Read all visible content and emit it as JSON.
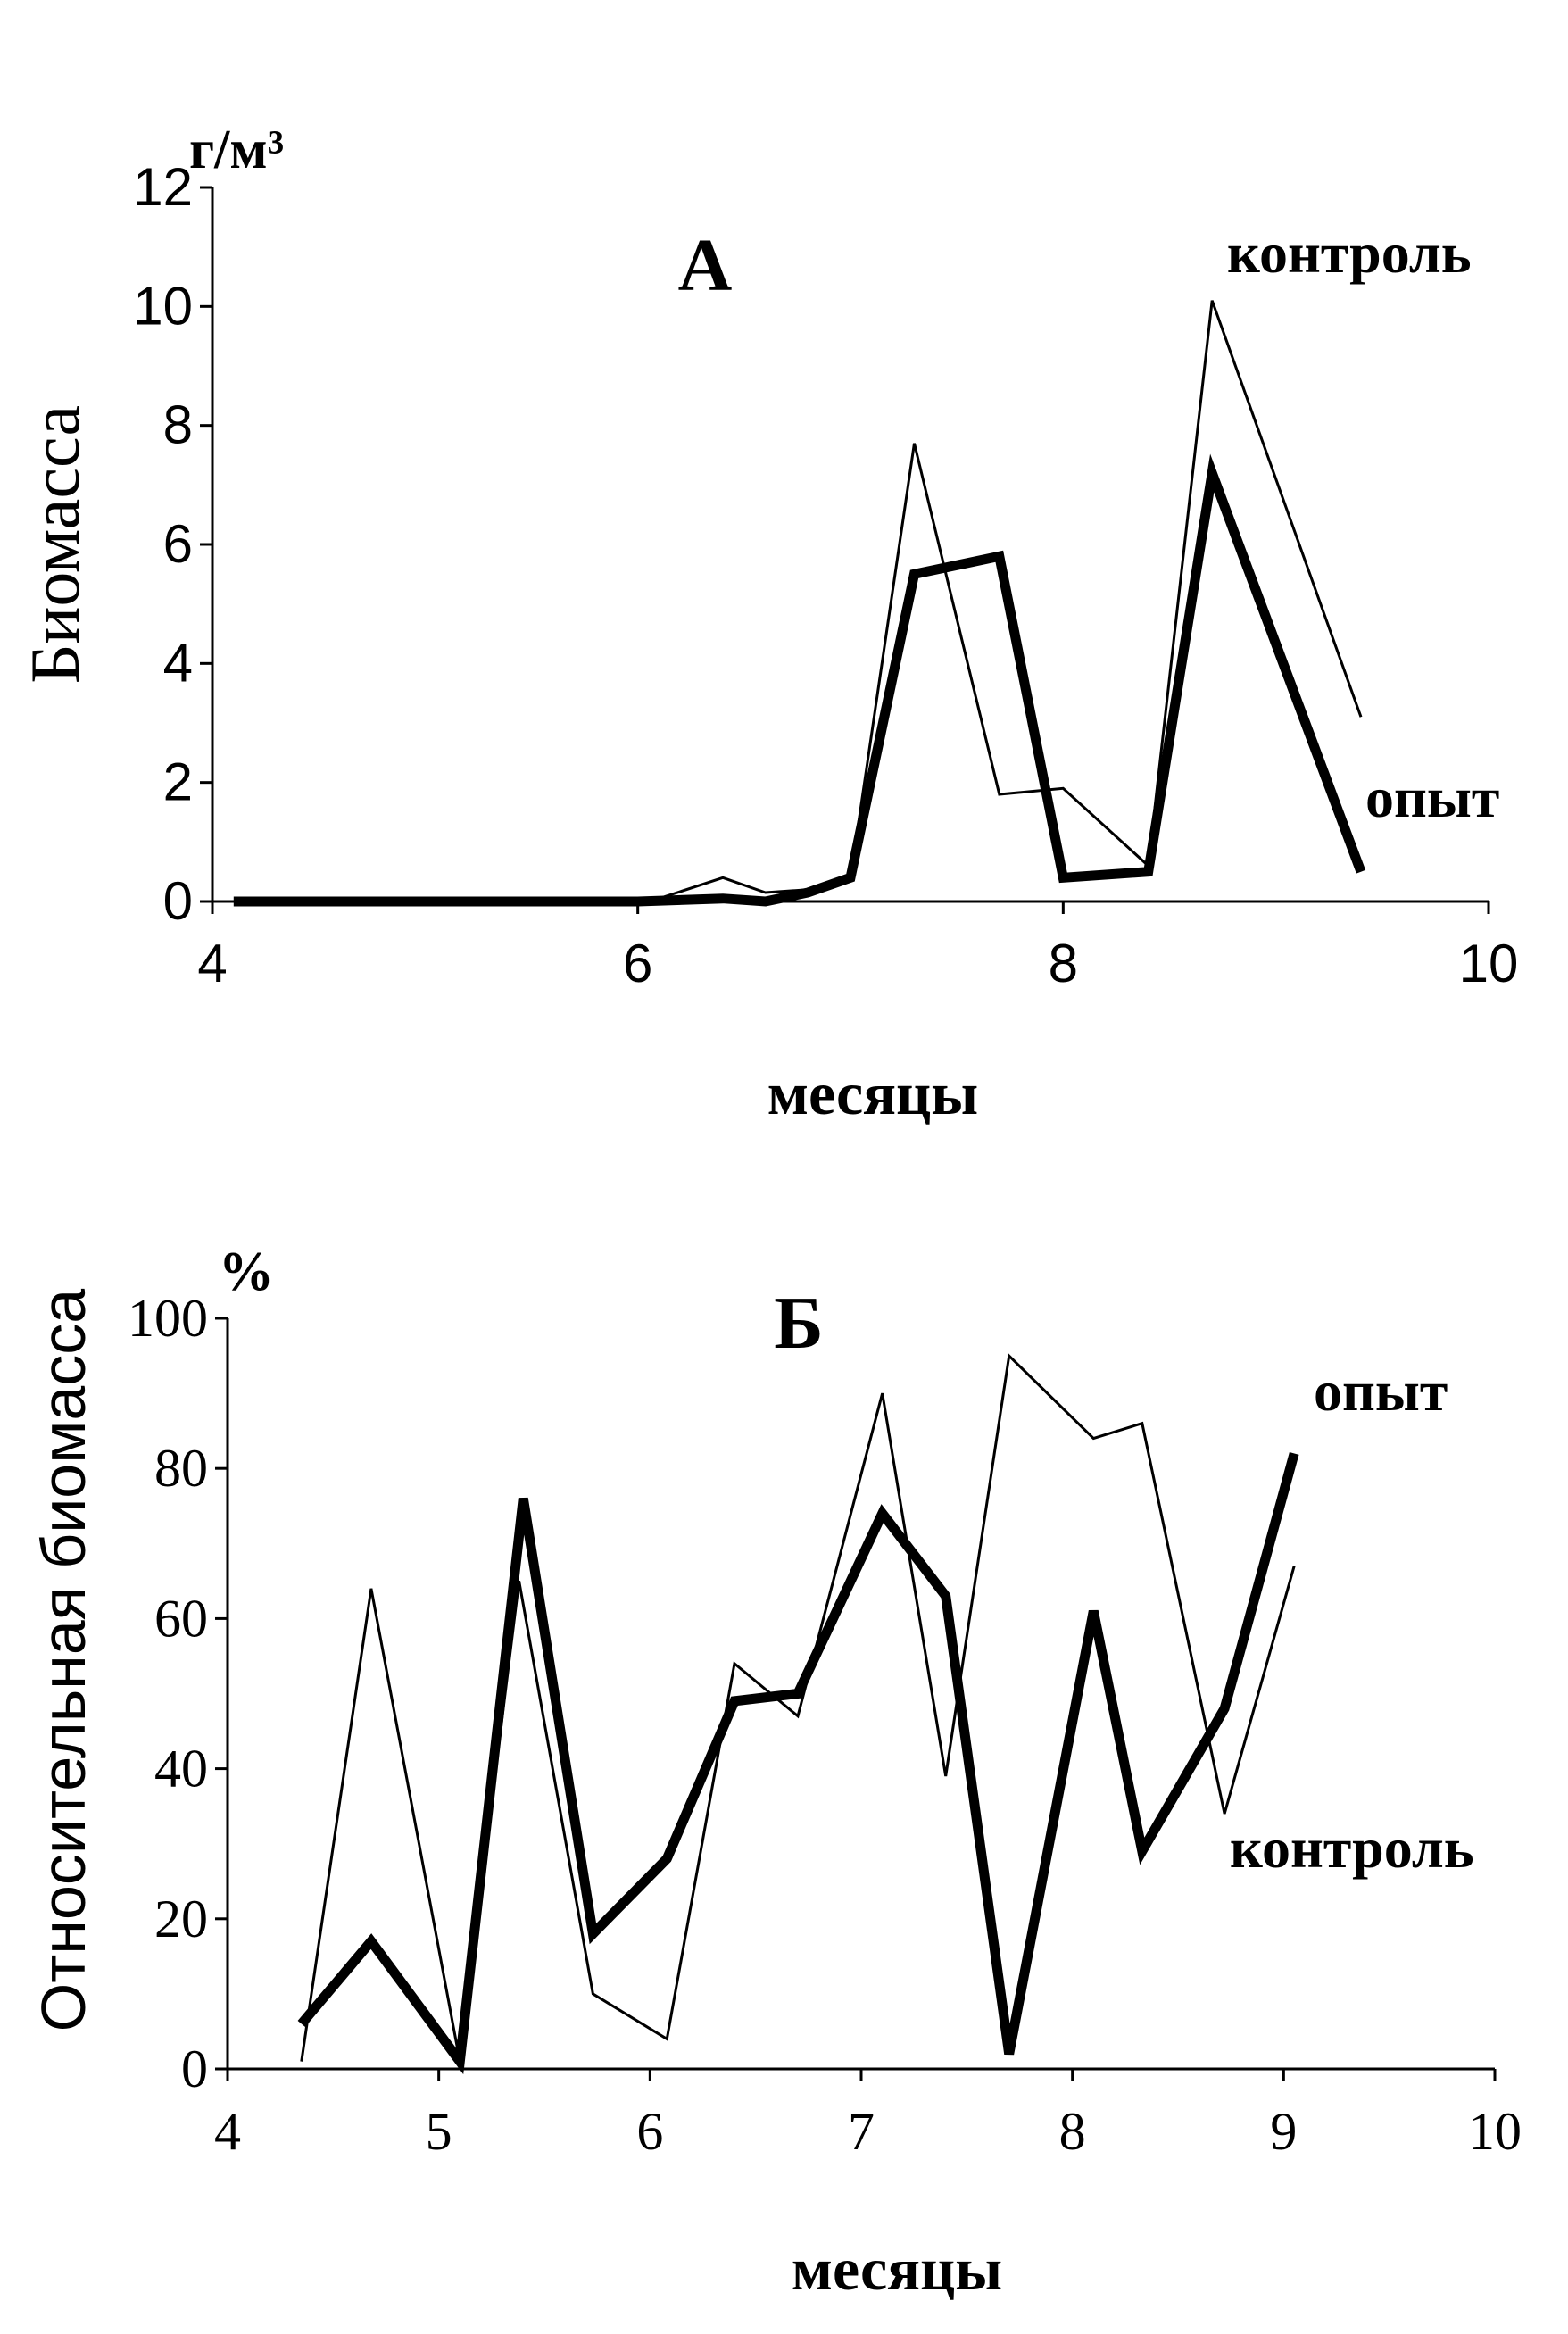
{
  "chart_data": [
    {
      "type": "line",
      "title": "А",
      "ylabel": "Биомасса",
      "yunit": "г/м³",
      "xlabel": "месяцы",
      "xlim": [
        4,
        10
      ],
      "ylim": [
        0,
        12
      ],
      "xticks": [
        4,
        6,
        8,
        10
      ],
      "yticks": [
        0,
        2,
        4,
        6,
        8,
        10,
        12
      ],
      "series": [
        {
          "name": "контроль",
          "style": "thin",
          "x": [
            4.1,
            6.0,
            6.1,
            6.4,
            6.6,
            6.8,
            7.0,
            7.3,
            7.7,
            8.0,
            8.4,
            8.7,
            9.4
          ],
          "y": [
            0.0,
            0.0,
            0.05,
            0.4,
            0.15,
            0.2,
            0.4,
            7.7,
            1.8,
            1.9,
            0.6,
            10.1,
            3.1
          ]
        },
        {
          "name": "опыт",
          "style": "thick",
          "x": [
            4.1,
            6.0,
            6.4,
            6.6,
            6.8,
            7.0,
            7.3,
            7.7,
            8.0,
            8.4,
            8.7,
            9.4
          ],
          "y": [
            0.0,
            0.0,
            0.05,
            0.0,
            0.15,
            0.4,
            5.5,
            5.8,
            0.4,
            0.5,
            7.2,
            0.5
          ]
        }
      ]
    },
    {
      "type": "line",
      "title": "Б",
      "ylabel": "Относительная биомасса",
      "yunit": "%",
      "xlabel": "месяцы",
      "xlim": [
        4,
        10
      ],
      "ylim": [
        0,
        100
      ],
      "xticks": [
        4,
        5,
        6,
        7,
        8,
        9,
        10
      ],
      "yticks": [
        0,
        20,
        40,
        60,
        80,
        100
      ],
      "series": [
        {
          "name": "контроль",
          "style": "thin",
          "x": [
            4.35,
            4.68,
            5.1,
            5.38,
            5.73,
            6.08,
            6.4,
            6.7,
            7.1,
            7.4,
            7.7,
            8.1,
            8.33,
            8.72,
            9.05
          ],
          "y": [
            1,
            64,
            1,
            65,
            10,
            4,
            54,
            47,
            90,
            39,
            95,
            84,
            86,
            34,
            67
          ]
        },
        {
          "name": "опыт",
          "style": "thick",
          "x": [
            4.35,
            4.68,
            5.1,
            5.4,
            5.73,
            6.08,
            6.4,
            6.7,
            7.1,
            7.4,
            7.7,
            8.1,
            8.33,
            8.72,
            9.05
          ],
          "y": [
            6,
            17,
            1,
            76,
            18,
            28,
            49,
            50,
            74,
            63,
            2,
            61,
            29,
            48,
            82
          ]
        }
      ]
    }
  ]
}
